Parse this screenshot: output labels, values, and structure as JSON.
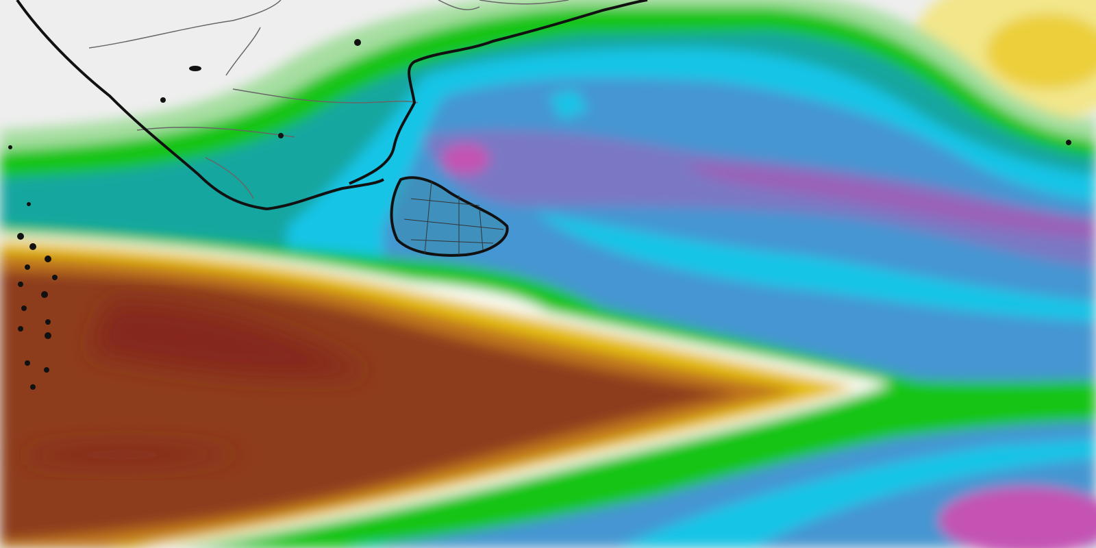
{
  "map": {
    "kind": "weather-field-map",
    "region_features": [
      "india-south-coast",
      "sri-lanka"
    ],
    "palette": {
      "land_background": "#eeeeee",
      "light_green": "#a6dea0",
      "green": "#19c419",
      "teal": "#12a6a0",
      "cyan": "#14c4e6",
      "blue": "#4596d2",
      "purple": "#7a78c4",
      "magenta": "#c452b4",
      "white_band": "#fbfbf4",
      "yellow": "#e6c00e",
      "orange": "#c0761e",
      "brown": "#8e3c1e",
      "dark_red": "#86281a",
      "pale_yellow": "#f2e68a",
      "coastline": "#111111",
      "border": "#555555"
    }
  }
}
